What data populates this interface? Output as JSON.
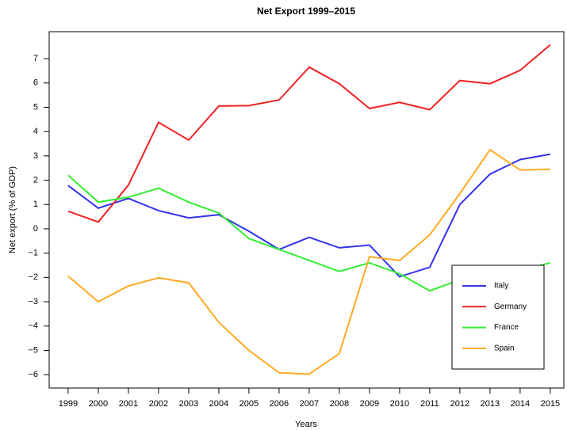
{
  "chart_data": {
    "type": "line",
    "title": "Net Export 1999–2015",
    "xlabel": "Years",
    "ylabel": "Net export (% of GDP)",
    "x": [
      1999,
      2000,
      2001,
      2002,
      2003,
      2004,
      2005,
      2006,
      2007,
      2008,
      2009,
      2010,
      2011,
      2012,
      2013,
      2014,
      2015
    ],
    "series": [
      {
        "name": "Italy",
        "color": "#3333ee",
        "values": [
          1.78,
          0.85,
          1.25,
          0.75,
          0.45,
          0.58,
          -0.1,
          -0.85,
          -0.35,
          -0.78,
          -0.67,
          -1.97,
          -1.58,
          1.0,
          2.25,
          2.85,
          3.07
        ]
      },
      {
        "name": "Germany",
        "color": "#ee2222",
        "values": [
          0.72,
          0.28,
          1.8,
          4.38,
          3.65,
          5.05,
          5.07,
          5.3,
          6.65,
          5.97,
          4.95,
          5.2,
          4.9,
          6.1,
          5.97,
          6.52,
          7.57
        ]
      },
      {
        "name": "France",
        "color": "#33ee33",
        "values": [
          2.2,
          1.1,
          1.3,
          1.67,
          1.1,
          0.65,
          -0.4,
          -0.85,
          -1.3,
          -1.75,
          -1.4,
          -1.85,
          -2.55,
          -2.1,
          -1.9,
          -1.7,
          -1.4
        ]
      },
      {
        "name": "Spain",
        "color": "#ffaa22",
        "values": [
          -1.95,
          -3.0,
          -2.35,
          -2.02,
          -2.22,
          -3.85,
          -5.0,
          -5.92,
          -5.98,
          -5.13,
          -1.15,
          -1.3,
          -0.25,
          1.45,
          3.25,
          2.42,
          2.45
        ]
      }
    ],
    "xlim": [
      1998.37,
      2015.45
    ],
    "xticks": [
      1999,
      2000,
      2001,
      2002,
      2003,
      2004,
      2005,
      2006,
      2007,
      2008,
      2009,
      2010,
      2011,
      2012,
      2013,
      2014,
      2015
    ],
    "ylim": [
      -6.55,
      8.11
    ],
    "yticks": [
      {
        "value": -6,
        "label": "−6"
      },
      {
        "value": -5,
        "label": "−5"
      },
      {
        "value": -4,
        "label": "−4"
      },
      {
        "value": -3,
        "label": "−3"
      },
      {
        "value": -2,
        "label": "−2"
      },
      {
        "value": -1,
        "label": "−1"
      },
      0,
      1,
      2,
      3,
      4,
      5,
      6,
      7
    ],
    "legend": "bottom-right"
  }
}
